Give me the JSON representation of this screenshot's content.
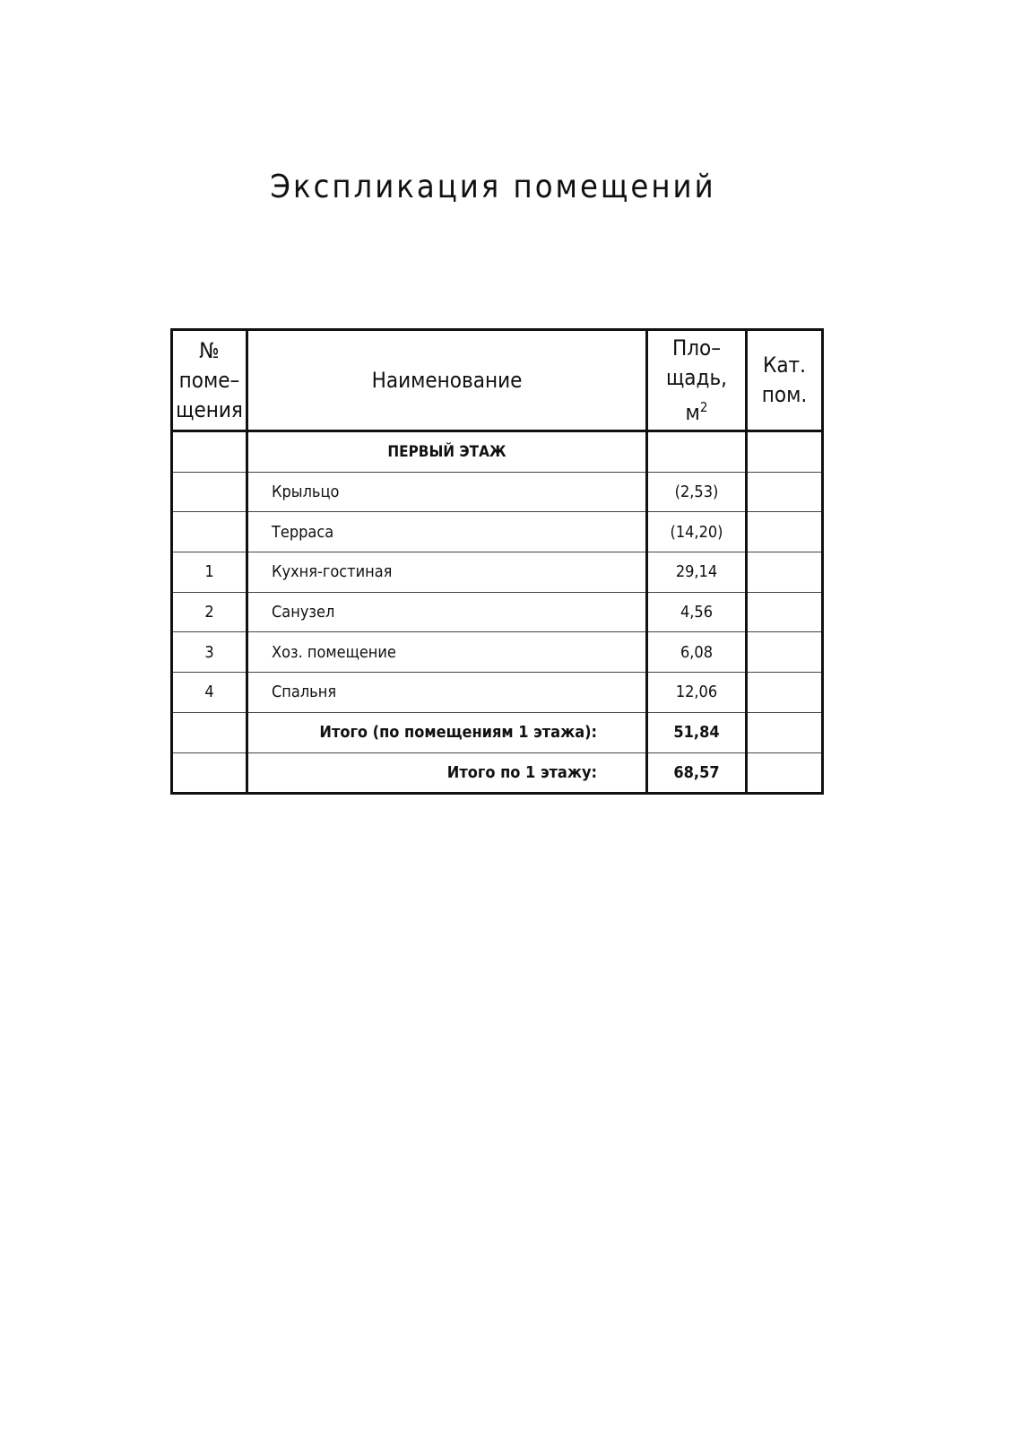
{
  "title": "Экспликация помещений",
  "header": {
    "number": [
      "№",
      "поме–",
      "щения"
    ],
    "name": "Наименование",
    "area": [
      "Пло–",
      "щадь,",
      "м"
    ],
    "area_sup": "2",
    "category": [
      "Кат.",
      "пом."
    ]
  },
  "section": "ПЕРВЫЙ ЭТАЖ",
  "rows": [
    {
      "number": "",
      "name": "Крыльцо",
      "area": "(2,53)",
      "category": ""
    },
    {
      "number": "",
      "name": "Терраса",
      "area": "(14,20)",
      "category": ""
    },
    {
      "number": "1",
      "name": "Кухня-гостиная",
      "area": "29,14",
      "category": ""
    },
    {
      "number": "2",
      "name": "Санузел",
      "area": "4,56",
      "category": ""
    },
    {
      "number": "3",
      "name": "Хоз. помещение",
      "area": "6,08",
      "category": ""
    },
    {
      "number": "4",
      "name": "Спальня",
      "area": "12,06",
      "category": ""
    }
  ],
  "totals": [
    {
      "label": "Итого (по помещениям 1 этажа):",
      "value": "51,84"
    },
    {
      "label": "Итого по 1 этажу:",
      "value": "68,57"
    }
  ]
}
